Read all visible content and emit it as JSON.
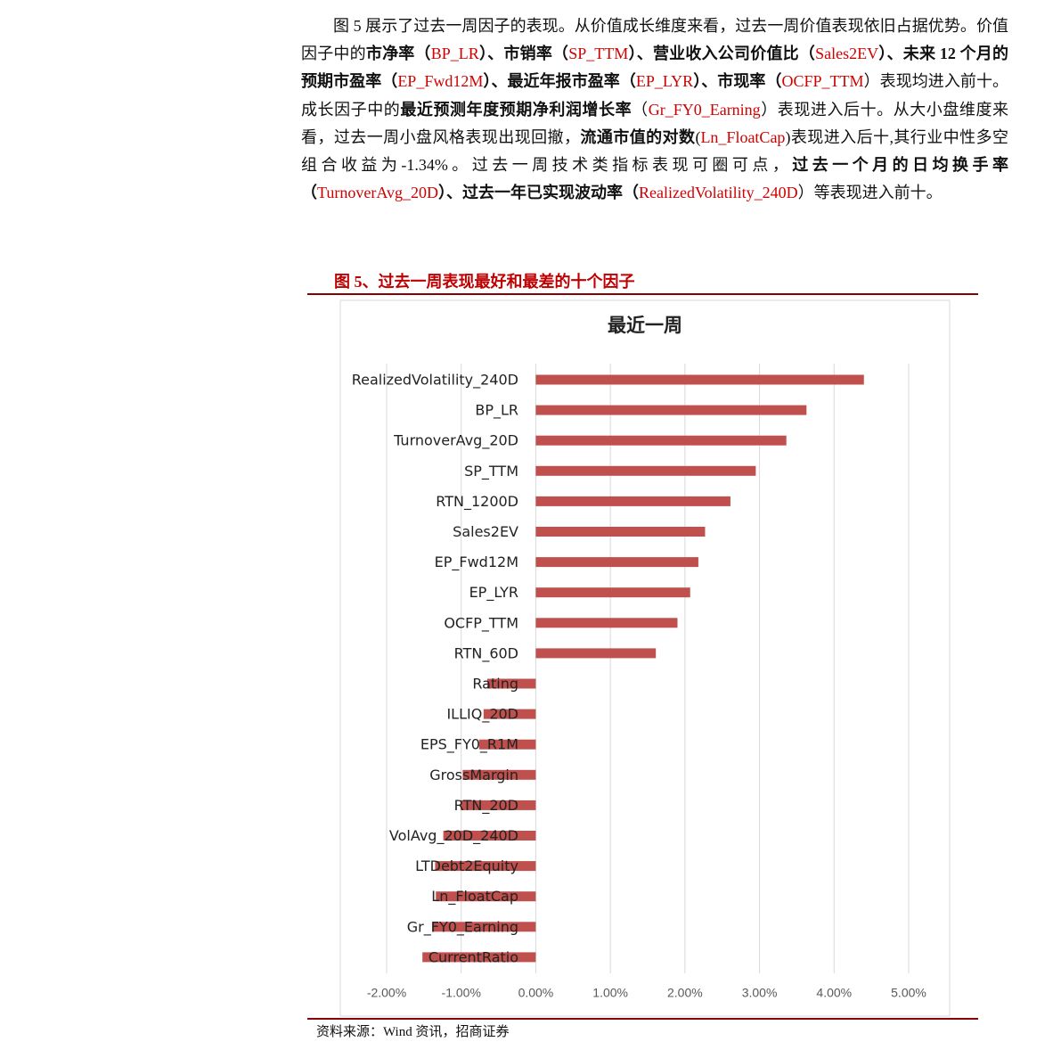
{
  "document": {
    "paragraph": {
      "runs": [
        {
          "text": "图 5 展示了过去一周因子的表现。从价值成长维度来看，过去一周价值表现依旧占据优势。价值因子中的",
          "style": "plain"
        },
        {
          "text": "市净率（",
          "style": "bold"
        },
        {
          "text": "BP_LR",
          "style": "red"
        },
        {
          "text": "）、市销率（",
          "style": "bold"
        },
        {
          "text": "SP_TTM",
          "style": "red"
        },
        {
          "text": "）、营业收入公司价值比（",
          "style": "bold"
        },
        {
          "text": "Sales2EV",
          "style": "red"
        },
        {
          "text": "）、未来 12 个月的预期市盈率（",
          "style": "bold"
        },
        {
          "text": "EP_Fwd12M",
          "style": "red"
        },
        {
          "text": "）、最近年报市盈率（",
          "style": "bold"
        },
        {
          "text": "EP_LYR",
          "style": "red"
        },
        {
          "text": "）、市现率（",
          "style": "bold"
        },
        {
          "text": "OCFP_TTM",
          "style": "red"
        },
        {
          "text": "）表现均进入前十。成长因子中的",
          "style": "plain"
        },
        {
          "text": "最近预测年度预期净利润增长率",
          "style": "bold"
        },
        {
          "text": "（",
          "style": "plain"
        },
        {
          "text": "Gr_FY0_Earning",
          "style": "red"
        },
        {
          "text": "）表现进入后十。从大小盘维度来看，过去一周小盘风格表现出现回撤，",
          "style": "plain"
        },
        {
          "text": "流通市值的对数",
          "style": "bold"
        },
        {
          "text": "(",
          "style": "plain"
        },
        {
          "text": "Ln_FloatCap",
          "style": "red"
        },
        {
          "text": ")表现进入后十,其行业中性多空组合收益为-1.34%。过去一周技术类指标表现可圈可点，",
          "style": "plain"
        },
        {
          "text": "过去一个月的日均换手率（",
          "style": "bold"
        },
        {
          "text": "TurnoverAvg_20D",
          "style": "red"
        },
        {
          "text": "）、过去一年已实现波动率（",
          "style": "bold"
        },
        {
          "text": "RealizedVolatility_240D",
          "style": "red"
        },
        {
          "text": "）等表现进入前十。",
          "style": "plain"
        }
      ]
    },
    "caption": "图 5、过去一周表现最好和最差的十个因子",
    "source": "资料来源：Wind 资讯，招商证券"
  },
  "chart_data": {
    "type": "barh",
    "title": "最近一周",
    "categories": [
      "RealizedVolatility_240D",
      "BP_LR",
      "TurnoverAvg_20D",
      "SP_TTM",
      "RTN_1200D",
      "Sales2EV",
      "EP_Fwd12M",
      "EP_LYR",
      "OCFP_TTM",
      "RTN_60D",
      "Rating",
      "ILLIQ_20D",
      "EPS_FY0_R1M",
      "GrossMargin",
      "RTN_20D",
      "VolAvg_20D_240D",
      "LTDebt2Equity",
      "Ln_FloatCap",
      "Gr_FY0_Earning",
      "CurrentRatio"
    ],
    "values": [
      4.4,
      3.63,
      3.36,
      2.95,
      2.61,
      2.27,
      2.18,
      2.07,
      1.9,
      1.61,
      -0.65,
      -0.7,
      -0.76,
      -0.98,
      -1.01,
      -1.24,
      -1.35,
      -1.34,
      -1.39,
      -1.52
    ],
    "color": "#c0504d",
    "xlim": [
      -2,
      5
    ],
    "xticks": [
      {
        "value": -2,
        "label": "-2.00%"
      },
      {
        "value": -1,
        "label": "-1.00%"
      },
      {
        "value": 0,
        "label": "0.00%"
      },
      {
        "value": 1,
        "label": "1.00%"
      },
      {
        "value": 2,
        "label": "2.00%"
      },
      {
        "value": 3,
        "label": "3.00%"
      },
      {
        "value": 4,
        "label": "4.00%"
      },
      {
        "value": 5,
        "label": "5.00%"
      }
    ],
    "grid": true
  }
}
